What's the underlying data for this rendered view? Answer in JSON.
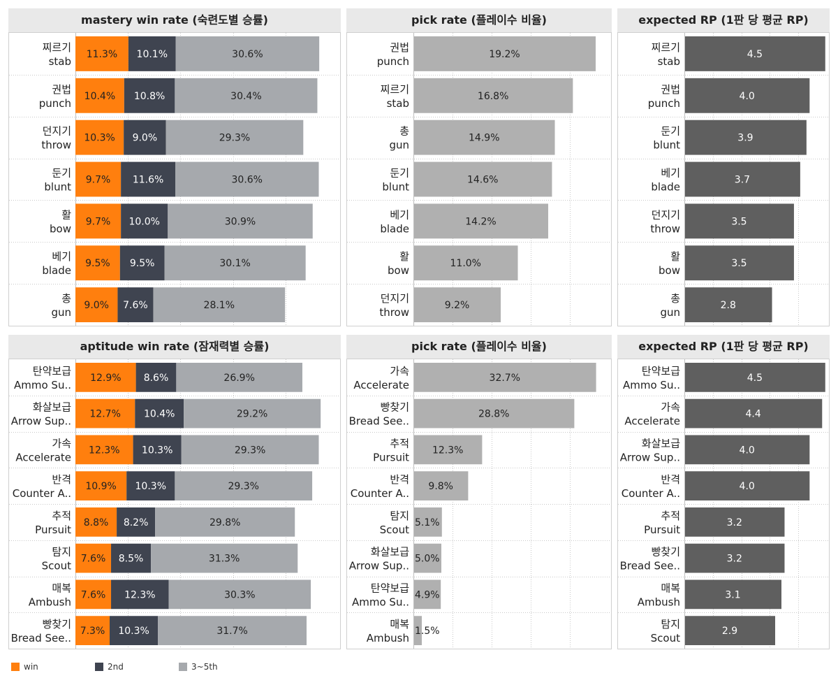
{
  "colors": {
    "win": "#ff7f0e",
    "second": "#3f4450",
    "third": "#a6a9ad",
    "pick": "#b0b0b0",
    "rp": "#5f5f5f"
  },
  "legend": {
    "win": "win",
    "second": "2nd",
    "third": "3~5th"
  },
  "chart_data": [
    {
      "type": "bar",
      "stacked": true,
      "orientation": "horizontal",
      "title": "mastery win rate (숙련도별 승률)",
      "categories": [
        [
          "찌르기",
          "stab"
        ],
        [
          "권법",
          "punch"
        ],
        [
          "던지기",
          "throw"
        ],
        [
          "둔기",
          "blunt"
        ],
        [
          "활",
          "bow"
        ],
        [
          "베기",
          "blade"
        ],
        [
          "총",
          "gun"
        ]
      ],
      "series": [
        {
          "name": "win",
          "values": [
            11.3,
            10.4,
            10.3,
            9.7,
            9.7,
            9.5,
            9.0
          ]
        },
        {
          "name": "2nd",
          "values": [
            10.1,
            10.8,
            9.0,
            11.6,
            10.0,
            9.5,
            7.6
          ]
        },
        {
          "name": "3~5th",
          "values": [
            30.6,
            30.4,
            29.3,
            30.6,
            30.9,
            30.1,
            28.1
          ]
        }
      ],
      "xlim": [
        0,
        56
      ],
      "grid": true
    },
    {
      "type": "bar",
      "orientation": "horizontal",
      "title": "pick rate (플레이수 비율)",
      "categories": [
        [
          "권법",
          "punch"
        ],
        [
          "찌르기",
          "stab"
        ],
        [
          "총",
          "gun"
        ],
        [
          "둔기",
          "blunt"
        ],
        [
          "베기",
          "blade"
        ],
        [
          "활",
          "bow"
        ],
        [
          "던지기",
          "throw"
        ]
      ],
      "values": [
        19.2,
        16.8,
        14.9,
        14.6,
        14.2,
        11.0,
        9.2
      ],
      "xlim": [
        0,
        20.6
      ],
      "grid": true
    },
    {
      "type": "bar",
      "orientation": "horizontal",
      "title": "expected RP (1판 당 평균 RP)",
      "categories": [
        [
          "찌르기",
          "stab"
        ],
        [
          "권법",
          "punch"
        ],
        [
          "둔기",
          "blunt"
        ],
        [
          "베기",
          "blade"
        ],
        [
          "던지기",
          "throw"
        ],
        [
          "활",
          "bow"
        ],
        [
          "총",
          "gun"
        ]
      ],
      "values": [
        4.5,
        4.0,
        3.9,
        3.7,
        3.5,
        3.5,
        2.8
      ],
      "xlim": [
        0,
        4.55
      ],
      "grid": true
    },
    {
      "type": "bar",
      "stacked": true,
      "orientation": "horizontal",
      "title": "aptitude win rate (잠재력별 승률)",
      "categories": [
        [
          "탄약보급",
          "Ammo Su.."
        ],
        [
          "화살보급",
          "Arrow Sup.."
        ],
        [
          "가속",
          "Accelerate"
        ],
        [
          "반격",
          "Counter A.."
        ],
        [
          "추적",
          "Pursuit"
        ],
        [
          "탐지",
          "Scout"
        ],
        [
          "매복",
          "Ambush"
        ],
        [
          "빵찾기",
          "Bread See.."
        ]
      ],
      "series": [
        {
          "name": "win",
          "values": [
            12.9,
            12.7,
            12.3,
            10.9,
            8.8,
            7.6,
            7.6,
            7.3
          ]
        },
        {
          "name": "2nd",
          "values": [
            8.6,
            10.4,
            10.3,
            10.3,
            8.2,
            8.5,
            12.3,
            10.3
          ]
        },
        {
          "name": "3~5th",
          "values": [
            26.9,
            29.2,
            29.3,
            29.3,
            29.8,
            31.3,
            30.3,
            31.7
          ]
        }
      ],
      "xlim": [
        0,
        56
      ],
      "grid": true
    },
    {
      "type": "bar",
      "orientation": "horizontal",
      "title": "pick rate (플레이수 비율)",
      "categories": [
        [
          "가속",
          "Accelerate"
        ],
        [
          "빵찾기",
          "Bread See.."
        ],
        [
          "추적",
          "Pursuit"
        ],
        [
          "반격",
          "Counter A.."
        ],
        [
          "탐지",
          "Scout"
        ],
        [
          "화살보급",
          "Arrow Sup.."
        ],
        [
          "탄약보급",
          "Ammo Su.."
        ],
        [
          "매복",
          "Ambush"
        ]
      ],
      "values": [
        32.7,
        28.8,
        12.3,
        9.8,
        5.1,
        5.0,
        4.9,
        1.5
      ],
      "xlim": [
        0,
        35
      ],
      "grid": true
    },
    {
      "type": "bar",
      "orientation": "horizontal",
      "title": "expected RP (1판 당 평균 RP)",
      "categories": [
        [
          "탄약보급",
          "Ammo Su.."
        ],
        [
          "가속",
          "Accelerate"
        ],
        [
          "화살보급",
          "Arrow Sup.."
        ],
        [
          "반격",
          "Counter A.."
        ],
        [
          "추적",
          "Pursuit"
        ],
        [
          "빵찾기",
          "Bread See.."
        ],
        [
          "매복",
          "Ambush"
        ],
        [
          "탐지",
          "Scout"
        ]
      ],
      "values": [
        4.5,
        4.4,
        4.0,
        4.0,
        3.2,
        3.2,
        3.1,
        2.9
      ],
      "xlim": [
        0,
        4.55
      ],
      "grid": true
    }
  ]
}
